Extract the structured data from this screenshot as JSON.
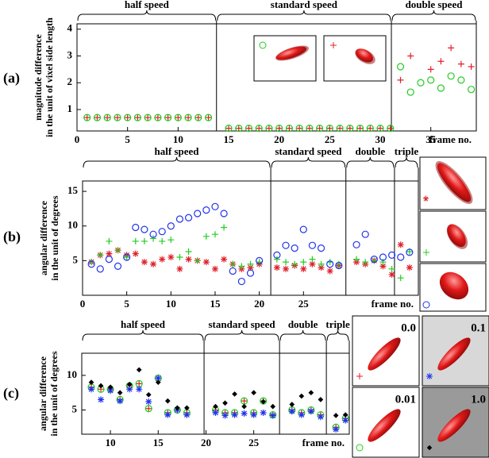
{
  "chart_data": [
    {
      "type": "scatter",
      "panel_label": "(a)",
      "ylabel": [
        "magnitude difference",
        "in the unit of vixel side length"
      ],
      "xlabel": "frame no.",
      "xlim": [
        0,
        39.5
      ],
      "ylim": [
        0.2,
        4.2
      ],
      "xticks": [
        0,
        5,
        10,
        15,
        20,
        25,
        30,
        35
      ],
      "yticks": [
        1,
        2,
        3,
        4
      ],
      "sections": [
        {
          "label": "half speed",
          "end": 13.8
        },
        {
          "label": "standard speed",
          "end": 31.1
        },
        {
          "label": "double speed",
          "end": 39.5
        }
      ],
      "x": [
        1,
        2,
        3,
        4,
        5,
        6,
        7,
        8,
        9,
        10,
        11,
        12,
        13,
        15,
        16,
        17,
        18,
        19,
        20,
        21,
        22,
        23,
        24,
        25,
        26,
        27,
        28,
        29,
        30,
        31,
        32,
        33,
        34,
        35,
        36,
        37,
        38,
        39
      ],
      "series": [
        {
          "color": "#e0202a",
          "marker": "plus",
          "values": [
            0.7,
            0.7,
            0.7,
            0.7,
            0.7,
            0.7,
            0.7,
            0.7,
            0.7,
            0.7,
            0.7,
            0.7,
            0.7,
            0.3,
            0.3,
            0.3,
            0.3,
            0.3,
            0.3,
            0.3,
            0.3,
            0.3,
            0.3,
            0.3,
            0.3,
            0.3,
            0.3,
            0.3,
            0.3,
            0.3,
            2.1,
            3.0,
            null,
            2.5,
            2.8,
            3.3,
            2.7,
            2.6
          ]
        },
        {
          "color": "#22cc22",
          "marker": "circle",
          "values": [
            0.7,
            0.7,
            0.7,
            0.7,
            0.7,
            0.7,
            0.7,
            0.7,
            0.7,
            0.7,
            0.7,
            0.7,
            0.7,
            0.3,
            0.3,
            0.3,
            0.3,
            0.3,
            0.3,
            0.3,
            0.3,
            0.3,
            0.3,
            0.3,
            0.3,
            0.3,
            0.3,
            0.3,
            0.3,
            0.3,
            2.6,
            1.65,
            2.0,
            2.1,
            1.8,
            2.25,
            2.1,
            1.75
          ]
        }
      ]
    },
    {
      "type": "scatter",
      "panel_label": "(b)",
      "ylabel": [
        "angular difference",
        "in the unit of degrees"
      ],
      "xlabel": "frame no.",
      "xlim": [
        0,
        38
      ],
      "ylim": [
        0,
        16.5
      ],
      "xticks": [
        0,
        5,
        10,
        15,
        20,
        25
      ],
      "yticks": [
        5,
        10,
        15
      ],
      "sections": [
        {
          "label": "half speed",
          "end": 21.3
        },
        {
          "label": "standard speed",
          "end": 29.8
        },
        {
          "label": "double",
          "end": 35.3
        },
        {
          "label": "triple",
          "end": 38
        }
      ],
      "x": [
        1,
        2,
        3,
        4,
        5,
        6,
        7,
        8,
        9,
        10,
        11,
        12,
        13,
        14,
        15,
        16,
        17,
        18,
        19,
        20,
        22,
        23,
        24,
        25,
        26,
        27,
        28,
        29,
        31,
        32,
        33,
        34,
        35,
        36,
        37
      ],
      "series": [
        {
          "color": "#e0202a",
          "marker": "star",
          "values": [
            4.8,
            5.8,
            6.0,
            6.5,
            5.8,
            6.0,
            4.8,
            4.5,
            5.2,
            5.5,
            3.8,
            5.2,
            5.0,
            4.8,
            3.8,
            5.2,
            4.5,
            3.8,
            4.0,
            4.5,
            4.0,
            3.8,
            4.3,
            3.8,
            4.5,
            4.0,
            3.5,
            4.3,
            4.8,
            4.5,
            5.0,
            4.2,
            3.0,
            7.3,
            4.0
          ]
        },
        {
          "color": "#22cc22",
          "marker": "plus",
          "values": [
            4.8,
            5.8,
            7.8,
            6.5,
            5.5,
            7.8,
            7.8,
            8.2,
            7.8,
            8.0,
            5.5,
            6.3,
            5.0,
            8.5,
            8.8,
            9.8,
            4.5,
            4.2,
            4.5,
            4.8,
            5.2,
            4.8,
            4.5,
            4.8,
            5.2,
            4.5,
            4.8,
            4.5,
            5.2,
            4.8,
            5.0,
            4.8,
            3.8,
            2.5,
            6.3
          ]
        },
        {
          "color": "#2233ee",
          "marker": "circle",
          "values": [
            4.5,
            3.8,
            5.2,
            4.2,
            5.5,
            9.8,
            9.5,
            8.8,
            9.2,
            10.0,
            11.0,
            11.2,
            11.8,
            12.3,
            12.8,
            11.8,
            3.5,
            2.0,
            3.2,
            5.0,
            5.8,
            7.2,
            6.8,
            9.5,
            7.2,
            6.8,
            4.5,
            4.3,
            7.3,
            8.8,
            5.2,
            5.5,
            5.8,
            5.5,
            6.2
          ]
        }
      ]
    },
    {
      "type": "scatter",
      "panel_label": "(c)",
      "ylabel": [
        "angular difference",
        "in the unit of degrees"
      ],
      "xlabel": "frame no.",
      "xlim": [
        7,
        35
      ],
      "ylim": [
        1.5,
        13.2
      ],
      "xticks": [
        10,
        15,
        20,
        25
      ],
      "yticks": [
        5,
        10
      ],
      "sections": [
        {
          "label": "half speed",
          "end": 19.8
        },
        {
          "label": "standard speed",
          "end": 27.7
        },
        {
          "label": "double",
          "end": 32.6
        },
        {
          "label": "triple",
          "end": 35
        }
      ],
      "x": [
        8,
        9,
        10,
        11,
        12,
        13,
        14,
        15,
        16,
        17,
        18,
        21,
        22,
        23,
        24,
        25,
        26,
        27,
        29,
        30,
        31,
        32,
        33.6,
        34.6
      ],
      "series": [
        {
          "name": "0.0",
          "color": "#e0202a",
          "marker": "plus",
          "values": [
            8.3,
            8.0,
            8.0,
            6.5,
            8.5,
            8.8,
            5.2,
            9.6,
            4.6,
            5.0,
            4.6,
            5.0,
            4.6,
            4.6,
            6.3,
            4.6,
            6.3,
            4.3,
            5.0,
            4.6,
            5.0,
            4.3,
            2.5,
            3.8
          ]
        },
        {
          "name": "0.01",
          "color": "#22cc22",
          "marker": "circle",
          "values": [
            8.3,
            8.0,
            8.0,
            6.5,
            8.5,
            8.8,
            5.2,
            9.6,
            4.6,
            5.0,
            4.6,
            5.0,
            4.6,
            4.6,
            6.3,
            4.6,
            6.3,
            4.3,
            5.0,
            4.6,
            5.0,
            4.3,
            2.5,
            3.8
          ]
        },
        {
          "name": "0.1",
          "color": "#2233ee",
          "marker": "star",
          "values": [
            8.0,
            6.5,
            7.8,
            6.3,
            8.0,
            8.0,
            6.2,
            9.6,
            4.3,
            5.0,
            4.3,
            4.6,
            4.2,
            4.3,
            4.5,
            4.3,
            4.6,
            4.2,
            4.8,
            4.3,
            4.8,
            4.0,
            2.2,
            3.5
          ]
        },
        {
          "name": "1.0",
          "color": "#000000",
          "marker": "dot",
          "values": [
            9.0,
            8.5,
            8.3,
            7.5,
            8.7,
            10.8,
            7.2,
            9.0,
            6.3,
            5.3,
            5.3,
            5.5,
            6.0,
            7.3,
            5.5,
            7.5,
            6.2,
            5.5,
            5.8,
            7.0,
            7.5,
            6.5,
            4.2,
            4.3
          ]
        }
      ]
    }
  ]
}
